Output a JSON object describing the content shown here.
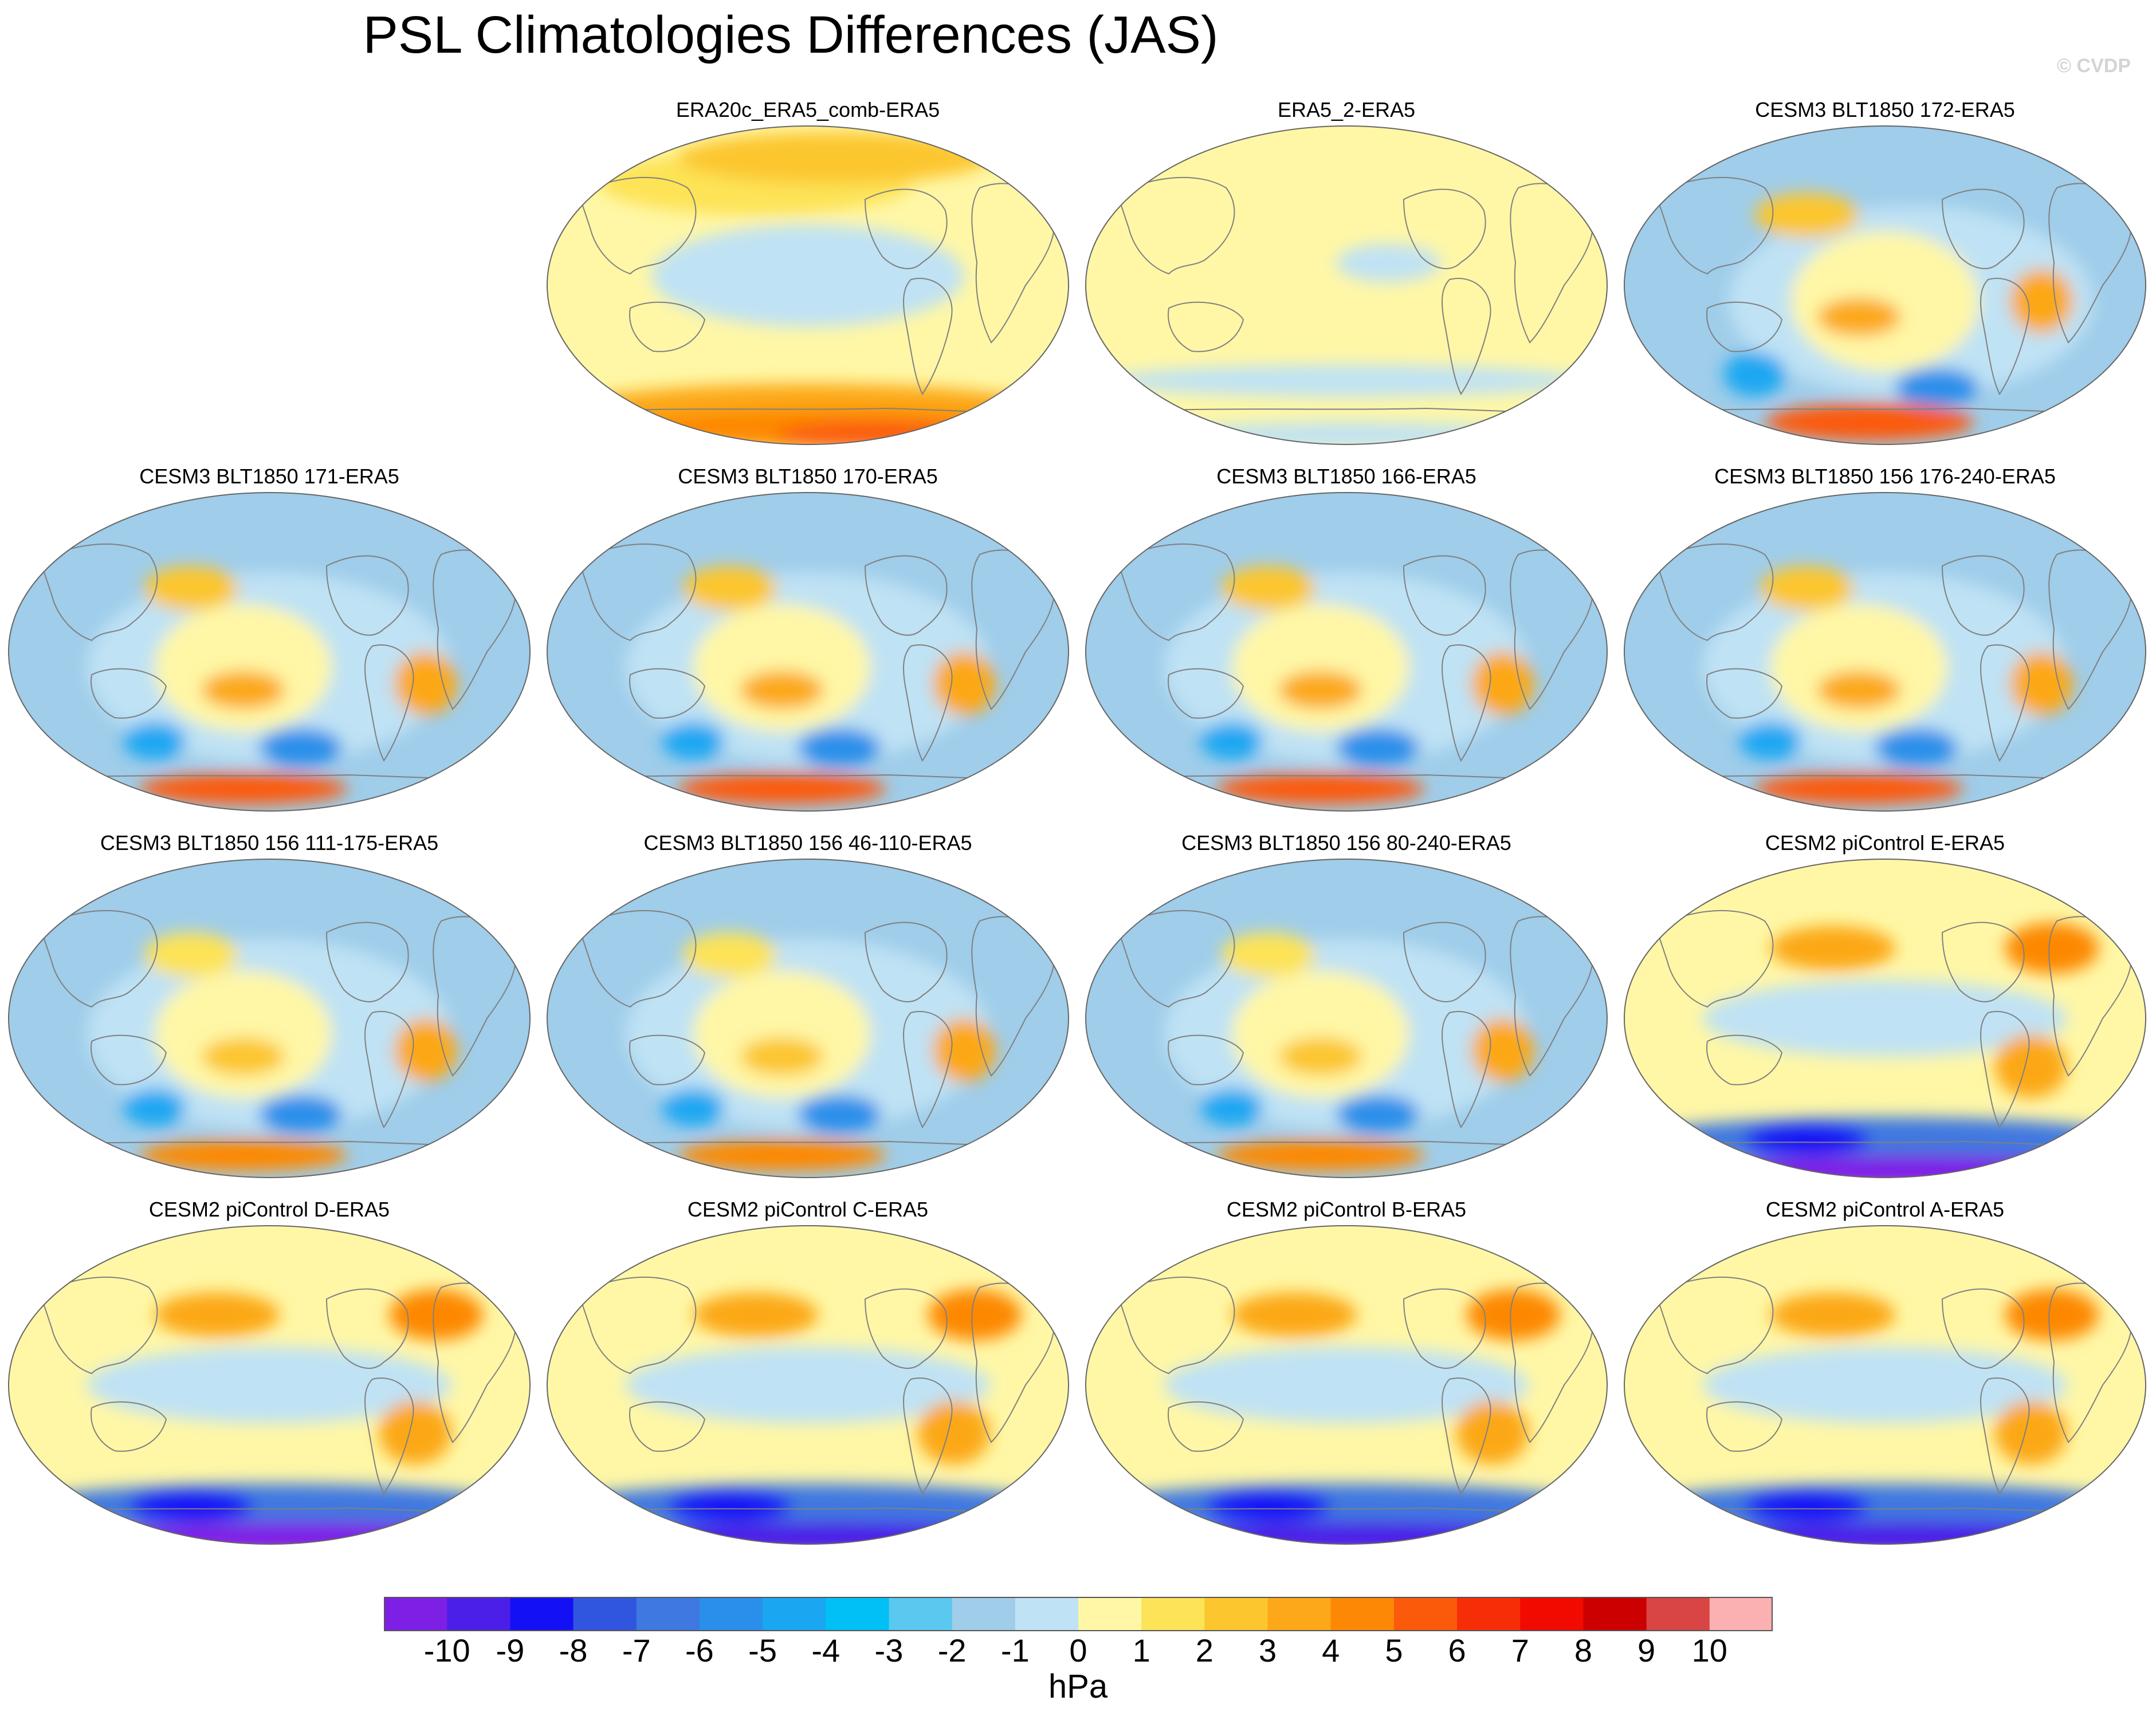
{
  "title": "PSL Climatologies Differences (JAS)",
  "credit": "© CVDP",
  "colorbar": {
    "units": "hPa",
    "ticks": [
      "-10",
      "-9",
      "-8",
      "-7",
      "-6",
      "-5",
      "-4",
      "-3",
      "-2",
      "-1",
      "0",
      "1",
      "2",
      "3",
      "4",
      "5",
      "6",
      "7",
      "8",
      "9",
      "10"
    ],
    "colors": [
      "#7e1fe6",
      "#4b1fe8",
      "#1410f5",
      "#3056e0",
      "#3f78e0",
      "#2a8fea",
      "#1aa7f2",
      "#00c0f5",
      "#5ac8ef",
      "#9fcdea",
      "#bfe2f4",
      "#fff7a6",
      "#fde357",
      "#fcc62e",
      "#fca818",
      "#fd8806",
      "#fb5a0a",
      "#f72d08",
      "#f20a00",
      "#cc0000",
      "#d94444",
      "#fbb1b1"
    ],
    "palette_roles": {
      "land_outline": "#808080",
      "ocean_base_positive": "#fff7a6",
      "ocean_base_negative": "#bfe2f4"
    }
  },
  "panels": [
    {
      "id": "p1",
      "title": "ERA20c_ERA5_comb-ERA5",
      "base": "#fff7a6",
      "blobs": [
        [
          "#bfe2f4",
          0.5,
          0.47,
          0.3,
          0.16
        ],
        [
          "#fde357",
          0.4,
          0.18,
          0.3,
          0.1
        ],
        [
          "#fcc62e",
          0.55,
          0.1,
          0.3,
          0.08
        ],
        [
          "#fca818",
          0.5,
          0.9,
          0.48,
          0.09
        ],
        [
          "#fd8806",
          0.55,
          0.95,
          0.4,
          0.06
        ],
        [
          "#fb5a0a",
          0.62,
          0.97,
          0.18,
          0.04
        ]
      ]
    },
    {
      "id": "p2",
      "title": "ERA5_2-ERA5",
      "base": "#fff7a6",
      "blobs": [
        [
          "#bfe2f4",
          0.58,
          0.43,
          0.1,
          0.06
        ],
        [
          "#bfe2f4",
          0.5,
          0.8,
          0.46,
          0.05
        ],
        [
          "#bfe2f4",
          0.5,
          0.97,
          0.35,
          0.04
        ]
      ]
    },
    {
      "id": "p3",
      "title": "CESM3 BLT1850 172-ERA5",
      "base": "#9fcdea",
      "blobs": [
        [
          "#bfe2f4",
          0.55,
          0.55,
          0.35,
          0.3
        ],
        [
          "#fff7a6",
          0.5,
          0.55,
          0.18,
          0.22
        ],
        [
          "#fcc62e",
          0.35,
          0.28,
          0.1,
          0.07
        ],
        [
          "#fca818",
          0.45,
          0.6,
          0.08,
          0.06
        ],
        [
          "#2a8fea",
          0.6,
          0.82,
          0.08,
          0.06
        ],
        [
          "#1aa7f2",
          0.25,
          0.78,
          0.06,
          0.07
        ],
        [
          "#fb5a0a",
          0.47,
          0.93,
          0.2,
          0.06
        ],
        [
          "#fca818",
          0.8,
          0.55,
          0.06,
          0.1
        ]
      ]
    },
    {
      "id": "p4",
      "title": "CESM3 BLT1850 171-ERA5",
      "base": "#9fcdea",
      "blobs": [
        [
          "#bfe2f4",
          0.5,
          0.55,
          0.35,
          0.3
        ],
        [
          "#fff7a6",
          0.45,
          0.55,
          0.17,
          0.2
        ],
        [
          "#fcc62e",
          0.35,
          0.3,
          0.09,
          0.07
        ],
        [
          "#fca818",
          0.45,
          0.62,
          0.08,
          0.06
        ],
        [
          "#2a8fea",
          0.56,
          0.8,
          0.08,
          0.06
        ],
        [
          "#1aa7f2",
          0.28,
          0.78,
          0.06,
          0.06
        ],
        [
          "#fb5a0a",
          0.45,
          0.93,
          0.2,
          0.05
        ],
        [
          "#fca818",
          0.8,
          0.6,
          0.06,
          0.1
        ]
      ]
    },
    {
      "id": "p5",
      "title": "CESM3 BLT1850 170-ERA5",
      "base": "#9fcdea",
      "blobs": [
        [
          "#bfe2f4",
          0.5,
          0.55,
          0.35,
          0.3
        ],
        [
          "#fff7a6",
          0.45,
          0.55,
          0.17,
          0.2
        ],
        [
          "#fcc62e",
          0.35,
          0.3,
          0.09,
          0.07
        ],
        [
          "#fca818",
          0.45,
          0.62,
          0.08,
          0.06
        ],
        [
          "#2a8fea",
          0.56,
          0.8,
          0.08,
          0.06
        ],
        [
          "#1aa7f2",
          0.28,
          0.78,
          0.06,
          0.06
        ],
        [
          "#fb5a0a",
          0.45,
          0.93,
          0.2,
          0.05
        ],
        [
          "#fca818",
          0.8,
          0.6,
          0.06,
          0.1
        ]
      ]
    },
    {
      "id": "p6",
      "title": "CESM3 BLT1850 166-ERA5",
      "base": "#9fcdea",
      "blobs": [
        [
          "#bfe2f4",
          0.5,
          0.55,
          0.35,
          0.3
        ],
        [
          "#fff7a6",
          0.45,
          0.55,
          0.17,
          0.2
        ],
        [
          "#fcc62e",
          0.35,
          0.3,
          0.09,
          0.07
        ],
        [
          "#fca818",
          0.45,
          0.62,
          0.08,
          0.06
        ],
        [
          "#2a8fea",
          0.56,
          0.8,
          0.08,
          0.06
        ],
        [
          "#1aa7f2",
          0.28,
          0.78,
          0.06,
          0.06
        ],
        [
          "#fb5a0a",
          0.45,
          0.93,
          0.2,
          0.05
        ],
        [
          "#fca818",
          0.8,
          0.6,
          0.06,
          0.1
        ]
      ]
    },
    {
      "id": "p7",
      "title": "CESM3 BLT1850 156 176-240-ERA5",
      "base": "#9fcdea",
      "blobs": [
        [
          "#bfe2f4",
          0.5,
          0.55,
          0.35,
          0.3
        ],
        [
          "#fff7a6",
          0.45,
          0.55,
          0.17,
          0.2
        ],
        [
          "#fcc62e",
          0.35,
          0.3,
          0.09,
          0.07
        ],
        [
          "#fca818",
          0.45,
          0.62,
          0.08,
          0.06
        ],
        [
          "#2a8fea",
          0.56,
          0.8,
          0.08,
          0.06
        ],
        [
          "#1aa7f2",
          0.28,
          0.78,
          0.06,
          0.06
        ],
        [
          "#fb5a0a",
          0.45,
          0.93,
          0.2,
          0.05
        ],
        [
          "#fca818",
          0.8,
          0.6,
          0.06,
          0.1
        ]
      ]
    },
    {
      "id": "p8",
      "title": "CESM3 BLT1850 156 111-175-ERA5",
      "base": "#9fcdea",
      "blobs": [
        [
          "#bfe2f4",
          0.5,
          0.55,
          0.35,
          0.3
        ],
        [
          "#fff7a6",
          0.45,
          0.55,
          0.17,
          0.2
        ],
        [
          "#fde357",
          0.35,
          0.3,
          0.09,
          0.07
        ],
        [
          "#fcc62e",
          0.45,
          0.62,
          0.08,
          0.06
        ],
        [
          "#2a8fea",
          0.56,
          0.8,
          0.08,
          0.06
        ],
        [
          "#1aa7f2",
          0.28,
          0.78,
          0.06,
          0.06
        ],
        [
          "#fd8806",
          0.45,
          0.93,
          0.2,
          0.05
        ],
        [
          "#fca818",
          0.8,
          0.6,
          0.06,
          0.1
        ]
      ]
    },
    {
      "id": "p9",
      "title": "CESM3 BLT1850 156 46-110-ERA5",
      "base": "#9fcdea",
      "blobs": [
        [
          "#bfe2f4",
          0.5,
          0.55,
          0.35,
          0.3
        ],
        [
          "#fff7a6",
          0.45,
          0.55,
          0.17,
          0.2
        ],
        [
          "#fde357",
          0.35,
          0.3,
          0.09,
          0.07
        ],
        [
          "#fcc62e",
          0.45,
          0.62,
          0.08,
          0.06
        ],
        [
          "#2a8fea",
          0.56,
          0.8,
          0.08,
          0.06
        ],
        [
          "#1aa7f2",
          0.28,
          0.78,
          0.06,
          0.06
        ],
        [
          "#fd8806",
          0.45,
          0.93,
          0.2,
          0.05
        ],
        [
          "#fca818",
          0.8,
          0.6,
          0.06,
          0.1
        ]
      ]
    },
    {
      "id": "p10",
      "title": "CESM3 BLT1850 156 80-240-ERA5",
      "base": "#9fcdea",
      "blobs": [
        [
          "#bfe2f4",
          0.5,
          0.55,
          0.35,
          0.3
        ],
        [
          "#fff7a6",
          0.45,
          0.55,
          0.17,
          0.2
        ],
        [
          "#fde357",
          0.35,
          0.3,
          0.09,
          0.07
        ],
        [
          "#fcc62e",
          0.45,
          0.62,
          0.08,
          0.06
        ],
        [
          "#2a8fea",
          0.56,
          0.8,
          0.08,
          0.06
        ],
        [
          "#1aa7f2",
          0.28,
          0.78,
          0.06,
          0.06
        ],
        [
          "#fd8806",
          0.45,
          0.93,
          0.2,
          0.05
        ],
        [
          "#fca818",
          0.8,
          0.6,
          0.06,
          0.1
        ]
      ]
    },
    {
      "id": "p11",
      "title": "CESM2 piControl E-ERA5",
      "base": "#fff7a6",
      "blobs": [
        [
          "#bfe2f4",
          0.5,
          0.5,
          0.35,
          0.12
        ],
        [
          "#fca818",
          0.4,
          0.28,
          0.12,
          0.07
        ],
        [
          "#fd8806",
          0.82,
          0.28,
          0.09,
          0.08
        ],
        [
          "#fca818",
          0.78,
          0.65,
          0.07,
          0.1
        ],
        [
          "#3f78e0",
          0.5,
          0.88,
          0.48,
          0.07
        ],
        [
          "#1410f5",
          0.35,
          0.88,
          0.12,
          0.05
        ],
        [
          "#7e1fe6",
          0.55,
          0.98,
          0.42,
          0.05
        ]
      ]
    },
    {
      "id": "p12",
      "title": "CESM2 piControl D-ERA5",
      "base": "#fff7a6",
      "blobs": [
        [
          "#bfe2f4",
          0.5,
          0.5,
          0.35,
          0.12
        ],
        [
          "#fca818",
          0.4,
          0.28,
          0.12,
          0.07
        ],
        [
          "#fd8806",
          0.82,
          0.28,
          0.09,
          0.08
        ],
        [
          "#fca818",
          0.78,
          0.65,
          0.07,
          0.1
        ],
        [
          "#3f78e0",
          0.5,
          0.88,
          0.48,
          0.07
        ],
        [
          "#1410f5",
          0.35,
          0.88,
          0.12,
          0.05
        ],
        [
          "#7e1fe6",
          0.55,
          0.98,
          0.42,
          0.05
        ]
      ]
    },
    {
      "id": "p13",
      "title": "CESM2 piControl C-ERA5",
      "base": "#fff7a6",
      "blobs": [
        [
          "#bfe2f4",
          0.5,
          0.5,
          0.35,
          0.12
        ],
        [
          "#fca818",
          0.4,
          0.28,
          0.12,
          0.07
        ],
        [
          "#fd8806",
          0.82,
          0.28,
          0.09,
          0.08
        ],
        [
          "#fca818",
          0.78,
          0.65,
          0.07,
          0.1
        ],
        [
          "#3f78e0",
          0.5,
          0.88,
          0.48,
          0.07
        ],
        [
          "#1410f5",
          0.35,
          0.88,
          0.12,
          0.05
        ],
        [
          "#4b1fe8",
          0.55,
          0.98,
          0.42,
          0.05
        ]
      ]
    },
    {
      "id": "p14",
      "title": "CESM2 piControl B-ERA5",
      "base": "#fff7a6",
      "blobs": [
        [
          "#bfe2f4",
          0.5,
          0.5,
          0.35,
          0.12
        ],
        [
          "#fca818",
          0.4,
          0.28,
          0.12,
          0.07
        ],
        [
          "#fd8806",
          0.82,
          0.28,
          0.09,
          0.08
        ],
        [
          "#fca818",
          0.78,
          0.65,
          0.07,
          0.1
        ],
        [
          "#3f78e0",
          0.5,
          0.88,
          0.48,
          0.07
        ],
        [
          "#1410f5",
          0.35,
          0.88,
          0.12,
          0.05
        ],
        [
          "#4b1fe8",
          0.55,
          0.98,
          0.42,
          0.05
        ]
      ]
    },
    {
      "id": "p15",
      "title": "CESM2 piControl A-ERA5",
      "base": "#fff7a6",
      "blobs": [
        [
          "#bfe2f4",
          0.5,
          0.5,
          0.35,
          0.12
        ],
        [
          "#fca818",
          0.4,
          0.28,
          0.12,
          0.07
        ],
        [
          "#fd8806",
          0.82,
          0.28,
          0.09,
          0.08
        ],
        [
          "#fca818",
          0.78,
          0.65,
          0.07,
          0.1
        ],
        [
          "#3f78e0",
          0.5,
          0.88,
          0.48,
          0.07
        ],
        [
          "#1410f5",
          0.35,
          0.88,
          0.12,
          0.05
        ],
        [
          "#4b1fe8",
          0.55,
          0.98,
          0.42,
          0.05
        ]
      ]
    }
  ]
}
